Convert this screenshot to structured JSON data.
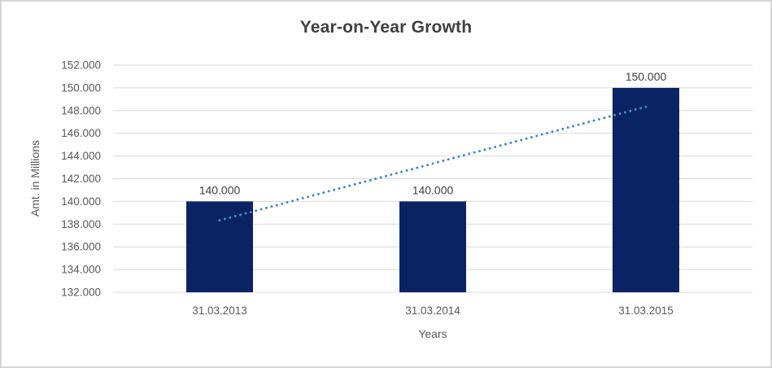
{
  "chart_data": {
    "type": "bar",
    "title": "Year-on-Year Growth",
    "xlabel": "Years",
    "ylabel": "Amt. in Millions",
    "categories": [
      "31.03.2013",
      "31.03.2014",
      "31.03.2015"
    ],
    "values": [
      140000,
      140000,
      150000
    ],
    "value_labels": [
      "140.000",
      "140.000",
      "150.000"
    ],
    "ylim": [
      132000,
      152000
    ],
    "y_tick_step": 2000,
    "y_tick_labels": [
      "132.000",
      "134.000",
      "136.000",
      "138.000",
      "140.000",
      "142.000",
      "144.000",
      "146.000",
      "148.000",
      "150.000",
      "152.000"
    ],
    "grid": true,
    "legend": "none",
    "bar_color": "#0a2463",
    "trendline": {
      "type": "linear",
      "style": "dotted",
      "color": "#4a86c8",
      "start_value": 138333,
      "end_value": 148333
    },
    "colors": {
      "gridline": "#d9d9d9",
      "tick_text": "#595959",
      "title_text": "#404040",
      "data_label_text": "#404040",
      "axis_title_text": "#595959",
      "frame_border": "#d6d6d6",
      "background": "#ffffff"
    }
  }
}
